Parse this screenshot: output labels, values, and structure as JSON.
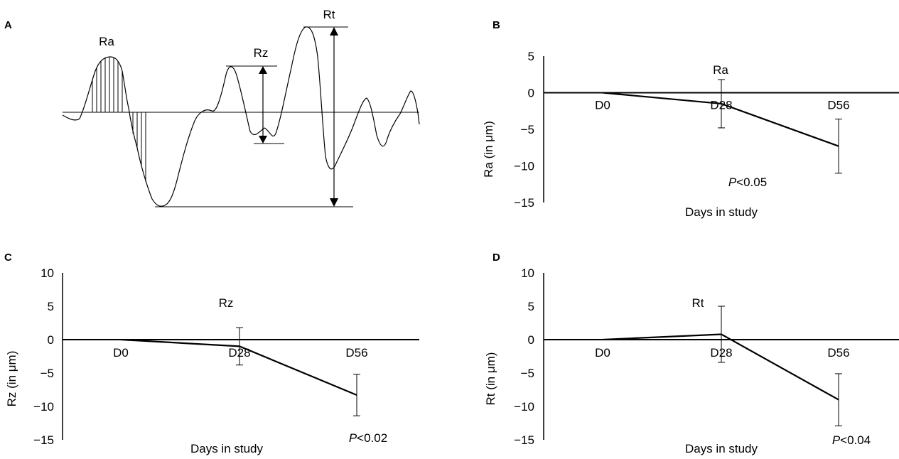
{
  "panel_a": {
    "label": "A",
    "labels": {
      "ra": "Ra",
      "rz": "Rz",
      "rt": "Rt"
    }
  },
  "chart_data": [
    {
      "panel": "B",
      "type": "line",
      "title": "Ra",
      "xlabel": "Days in study",
      "ylabel": "Ra (in μm)",
      "categories": [
        "D0",
        "D28",
        "D56"
      ],
      "series": [
        {
          "values": [
            0,
            -1.5,
            -7.3
          ],
          "err": [
            0,
            3.3,
            3.7
          ]
        }
      ],
      "ylim": [
        -15,
        5
      ],
      "yticks": [
        5,
        0,
        -5,
        -10,
        -15
      ],
      "ytick_labels": [
        "5",
        "0",
        "−5",
        "−10",
        "−15"
      ],
      "annotation": {
        "italic": "P",
        "text": "<0.05"
      },
      "grid": false
    },
    {
      "panel": "C",
      "type": "line",
      "title": "Rz",
      "xlabel": "Days in study",
      "ylabel": "Rz (in μm)",
      "categories": [
        "D0",
        "D28",
        "D56"
      ],
      "series": [
        {
          "values": [
            0,
            -1,
            -8.3
          ],
          "err": [
            0,
            2.8,
            3.1
          ]
        }
      ],
      "ylim": [
        -15,
        10
      ],
      "yticks": [
        10,
        5,
        0,
        -5,
        -10,
        -15
      ],
      "ytick_labels": [
        "10",
        "5",
        "0",
        "−5",
        "−10",
        "−15"
      ],
      "annotation": {
        "italic": "P",
        "text": "<0.02"
      },
      "grid": false
    },
    {
      "panel": "D",
      "type": "line",
      "title": "Rt",
      "xlabel": "Days in study",
      "ylabel": "Rt (in μm)",
      "categories": [
        "D0",
        "D28",
        "D56"
      ],
      "series": [
        {
          "values": [
            0,
            0.8,
            -9
          ],
          "err": [
            0,
            4.2,
            3.9
          ]
        }
      ],
      "ylim": [
        -15,
        10
      ],
      "yticks": [
        10,
        5,
        0,
        -5,
        -10,
        -15
      ],
      "ytick_labels": [
        "10",
        "5",
        "0",
        "−5",
        "−10",
        "−15"
      ],
      "annotation": {
        "italic": "P",
        "text": "<0.04"
      },
      "grid": false
    }
  ]
}
